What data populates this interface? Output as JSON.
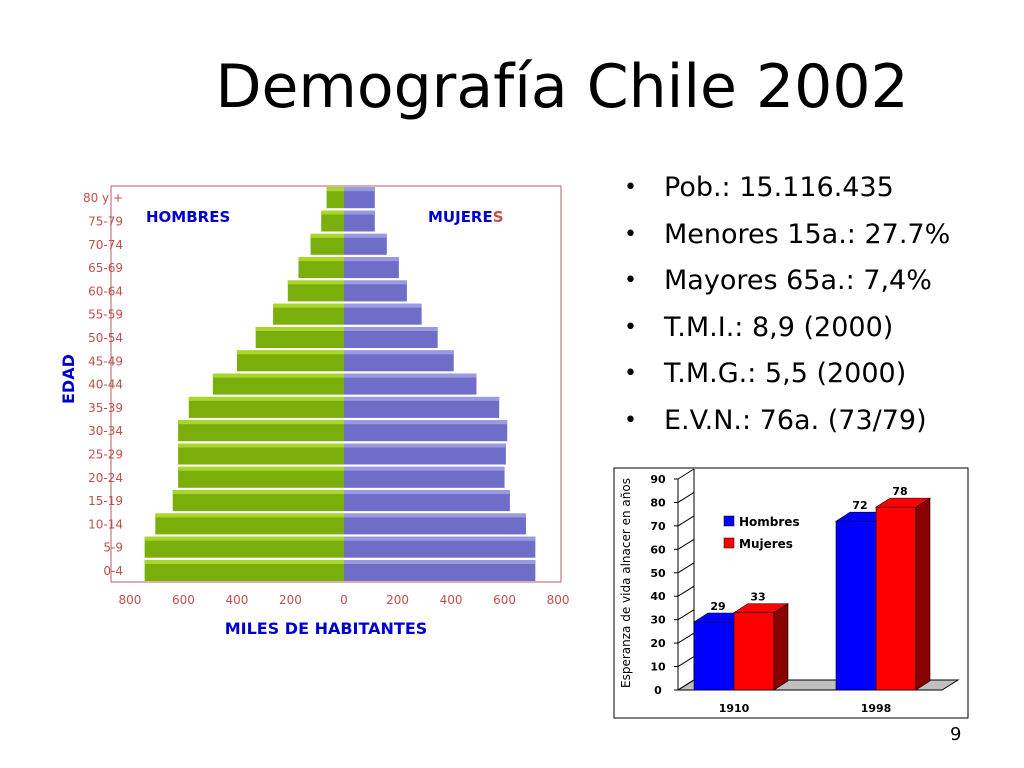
{
  "slide": {
    "title": "Demografía Chile  2002",
    "bullets": [
      "Pob.: 15.116.435",
      "Menores 15a.: 27.7%",
      "Mayores 65a.: 7,4%",
      "T.M.I.:  8,9 (2000)",
      "T.M.G.:  5,5 (2000)",
      "E.V.N.:  76a. (73/79)"
    ],
    "page_number": "9"
  },
  "colors": {
    "male_bar": "#7aae0a",
    "female_bar": "#6e6ec8",
    "pyramid_label": "#c0504d",
    "pyramid_heading": "#0000cc",
    "hombres_series": "#0000ff",
    "mujeres_series": "#ff0000"
  },
  "chart_data": [
    {
      "type": "bar",
      "subtype": "population-pyramid",
      "ylabel": "EDAD",
      "xlabel": "MILES DE HABITANTES",
      "male_label": "HOMBRES",
      "female_label": "MUJERES",
      "x_tick_labels_left": [
        "800",
        "600",
        "400",
        "200",
        "0"
      ],
      "x_tick_labels_right": [
        "200",
        "400",
        "600",
        "800"
      ],
      "xlim": [
        -800,
        800
      ],
      "categories": [
        "0-4",
        "5-9",
        "10-14",
        "15-19",
        "20-24",
        "25-29",
        "30-34",
        "35-39",
        "40-44",
        "45-49",
        "50-54",
        "55-59",
        "60-64",
        "65-69",
        "70-74",
        "75-79",
        "80 y +"
      ],
      "series": [
        {
          "name": "HOMBRES",
          "values": [
            745,
            745,
            705,
            640,
            620,
            620,
            620,
            580,
            490,
            400,
            330,
            265,
            210,
            170,
            125,
            85,
            65
          ]
        },
        {
          "name": "MUJERES",
          "values": [
            715,
            715,
            680,
            620,
            600,
            605,
            610,
            580,
            495,
            410,
            350,
            290,
            235,
            205,
            160,
            115,
            115
          ]
        }
      ]
    },
    {
      "type": "bar",
      "subtype": "3d-grouped",
      "ylabel": "Esperanza de vida alnacer en años",
      "categories": [
        "1910",
        "1998"
      ],
      "ylim": [
        0,
        90
      ],
      "yticks": [
        "0",
        "10",
        "20",
        "30",
        "40",
        "50",
        "60",
        "70",
        "80",
        "90"
      ],
      "legend_position": "left",
      "series": [
        {
          "name": "Hombres",
          "values": [
            29,
            72
          ],
          "labels": [
            "29",
            "72"
          ]
        },
        {
          "name": "Mujeres",
          "values": [
            33,
            78
          ],
          "labels": [
            "33",
            "78"
          ]
        }
      ]
    }
  ]
}
